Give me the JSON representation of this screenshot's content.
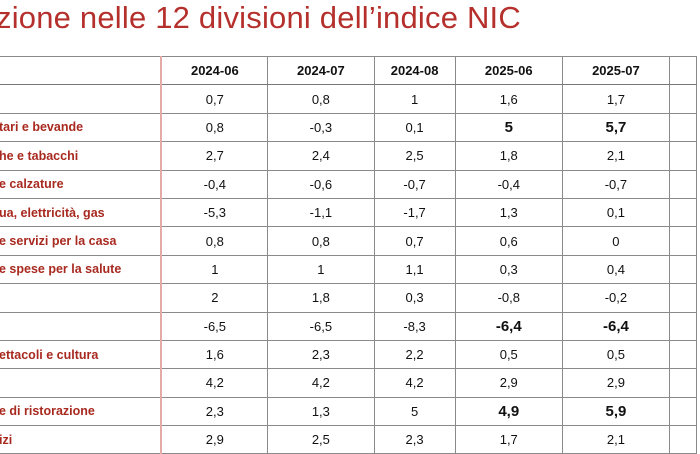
{
  "title": "zione nelle 12 divisioni dell’indice NIC",
  "table": {
    "header": [
      "",
      "2024-06",
      "2024-07",
      "2024-08",
      "2025-06",
      "2025-07",
      ""
    ],
    "rows": [
      {
        "label": "",
        "values": [
          "0,7",
          "0,8",
          "1",
          "1,6",
          "1,7"
        ],
        "bold": [
          false,
          false,
          false,
          false,
          false
        ]
      },
      {
        "label": "tari e bevande",
        "values": [
          "0,8",
          "-0,3",
          "0,1",
          "5",
          "5,7"
        ],
        "bold": [
          false,
          false,
          false,
          true,
          true
        ]
      },
      {
        "label": "he e tabacchi",
        "values": [
          "2,7",
          "2,4",
          "2,5",
          "1,8",
          "2,1"
        ],
        "bold": [
          false,
          false,
          false,
          false,
          false
        ]
      },
      {
        "label": "e calzature",
        "values": [
          "-0,4",
          "-0,6",
          "-0,7",
          "-0,4",
          "-0,7"
        ],
        "bold": [
          false,
          false,
          false,
          false,
          false
        ]
      },
      {
        "label": "ua, elettricità, gas",
        "values": [
          "-5,3",
          "-1,1",
          "-1,7",
          "1,3",
          "0,1"
        ],
        "bold": [
          false,
          false,
          false,
          false,
          false
        ]
      },
      {
        "label": "e servizi per la casa",
        "values": [
          "0,8",
          "0,8",
          "0,7",
          "0,6",
          "0"
        ],
        "bold": [
          false,
          false,
          false,
          false,
          false
        ]
      },
      {
        "label": "e spese per la salute",
        "values": [
          "1",
          "1",
          "1,1",
          "0,3",
          "0,4"
        ],
        "bold": [
          false,
          false,
          false,
          false,
          false
        ]
      },
      {
        "label": "",
        "values": [
          "2",
          "1,8",
          "0,3",
          "-0,8",
          "-0,2"
        ],
        "bold": [
          false,
          false,
          false,
          false,
          false
        ]
      },
      {
        "label": "",
        "values": [
          "-6,5",
          "-6,5",
          "-8,3",
          "-6,4",
          "-6,4"
        ],
        "bold": [
          false,
          false,
          false,
          true,
          true
        ]
      },
      {
        "label": "ettacoli e cultura",
        "values": [
          "1,6",
          "2,3",
          "2,2",
          "0,5",
          "0,5"
        ],
        "bold": [
          false,
          false,
          false,
          false,
          false
        ]
      },
      {
        "label": "",
        "values": [
          "4,2",
          "4,2",
          "4,2",
          "2,9",
          "2,9"
        ],
        "bold": [
          false,
          false,
          false,
          false,
          false
        ]
      },
      {
        "label": "e di ristorazione",
        "values": [
          "2,3",
          "1,3",
          "5",
          "4,9",
          "5,9"
        ],
        "bold": [
          false,
          false,
          false,
          true,
          true
        ]
      },
      {
        "label": "izi",
        "values": [
          "2,9",
          "2,5",
          "2,3",
          "1,7",
          "2,1"
        ],
        "bold": [
          false,
          false,
          false,
          false,
          false
        ]
      }
    ]
  }
}
